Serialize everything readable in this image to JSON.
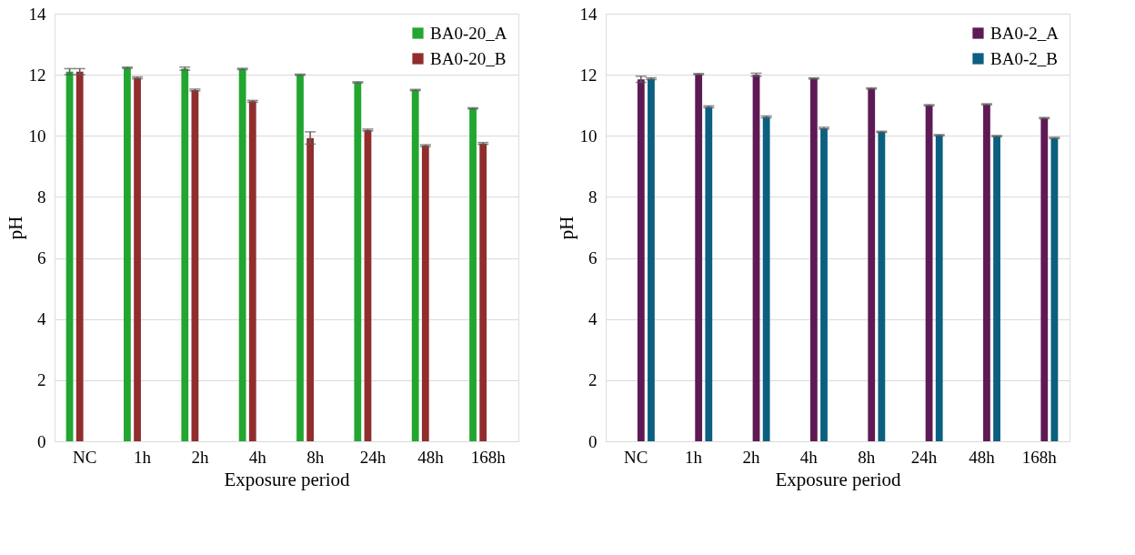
{
  "chart_data": [
    {
      "type": "bar",
      "xlabel": "Exposure period",
      "ylabel": "pH",
      "categories": [
        "NC",
        "1h",
        "2h",
        "4h",
        "8h",
        "24h",
        "48h",
        "168h"
      ],
      "ylim": [
        0,
        14
      ],
      "yticks": [
        0,
        2,
        4,
        6,
        8,
        10,
        12,
        14
      ],
      "grid": "y",
      "legend": "top right",
      "series": [
        {
          "name": "BA0-20_A",
          "color": "#22a630",
          "values": [
            12.1,
            12.23,
            12.2,
            12.19,
            12.0,
            11.75,
            11.5,
            10.9
          ],
          "errors": [
            0.1,
            0.02,
            0.05,
            0.02,
            0.02,
            0.02,
            0.02,
            0.02
          ]
        },
        {
          "name": "BA0-20_B",
          "color": "#922d2d",
          "values": [
            12.1,
            11.9,
            11.5,
            11.13,
            9.93,
            10.19,
            9.68,
            9.75
          ],
          "errors": [
            0.1,
            0.03,
            0.03,
            0.03,
            0.2,
            0.03,
            0.03,
            0.03
          ]
        }
      ]
    },
    {
      "type": "bar",
      "xlabel": "Exposure period",
      "ylabel": "pH",
      "categories": [
        "NC",
        "1h",
        "2h",
        "4h",
        "8h",
        "24h",
        "48h",
        "168h"
      ],
      "ylim": [
        0,
        14
      ],
      "yticks": [
        0,
        2,
        4,
        6,
        8,
        10,
        12,
        14
      ],
      "grid": "y",
      "legend": "top right",
      "series": [
        {
          "name": "BA0-2_A",
          "color": "#5e1a55",
          "values": [
            11.85,
            12.02,
            12.0,
            11.88,
            11.55,
            11.0,
            11.03,
            10.58
          ],
          "errors": [
            0.1,
            0.02,
            0.05,
            0.02,
            0.02,
            0.02,
            0.02,
            0.02
          ]
        },
        {
          "name": "BA0-2_B",
          "color": "#0b5f80",
          "values": [
            11.87,
            10.95,
            10.62,
            10.25,
            10.13,
            10.02,
            9.99,
            9.93
          ],
          "errors": [
            0.03,
            0.03,
            0.03,
            0.03,
            0.02,
            0.02,
            0.02,
            0.02
          ]
        }
      ]
    }
  ]
}
